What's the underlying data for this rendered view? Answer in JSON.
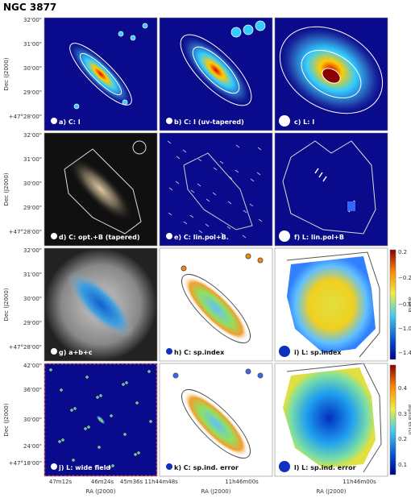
{
  "title": "NGC 3877",
  "y_axis_label": "Dec (J2000)",
  "x_axis_label": "RA (J2000)",
  "dec_ticks": [
    "32'00\"",
    "31'00\"",
    "30'00\"",
    "29'00\"",
    "+47°28'00\""
  ],
  "dec_ticks_wide": [
    "42'00\"",
    "36'00\"",
    "30'00\"",
    "24'00\"",
    "+47°18'00\""
  ],
  "ra_ticks": [
    [
      "47m12s",
      "46m24s",
      "45m36s",
      "11h44m48s"
    ],
    [
      "11h46m00s"
    ],
    [
      "11h46m00s"
    ]
  ],
  "panels": [
    {
      "label": "a) C: I"
    },
    {
      "label": "b) C: I (uv-tapered)"
    },
    {
      "label": "c) L: I"
    },
    {
      "label": "d) C: opt.+B (tapered)"
    },
    {
      "label": "e) C: lin.pol+B."
    },
    {
      "label": "f) L: lin.pol+B"
    },
    {
      "label": "g) a+b+c"
    },
    {
      "label": "h) C: sp.index"
    },
    {
      "label": "i) L: sp.index"
    },
    {
      "label": "j) L: wide field"
    },
    {
      "label": "k) C: sp.ind. error"
    },
    {
      "label": "l) L: sp.ind. error"
    }
  ],
  "colorbars": [
    {
      "label": "alpha",
      "ticks": [
        "0.2",
        "−0.2",
        "−0.6",
        "−1.0",
        "−1.4"
      ]
    },
    {
      "label": "alpha error",
      "ticks": [
        "0.4",
        "0.3",
        "0.2",
        "0.1"
      ]
    }
  ]
}
